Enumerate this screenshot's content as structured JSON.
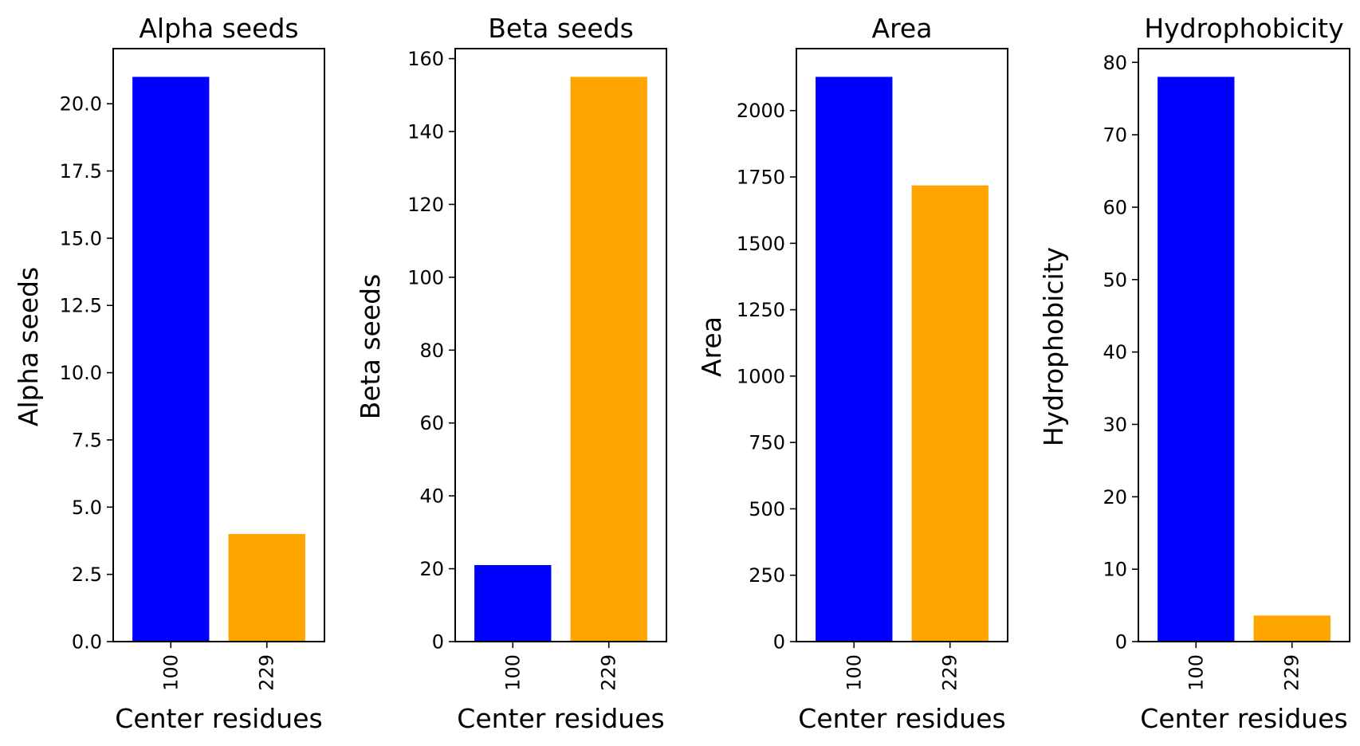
{
  "chart_data": [
    {
      "type": "bar",
      "title": "Alpha seeds",
      "xlabel": "Center residues",
      "ylabel": "Alpha seeds",
      "categories": [
        "100",
        "229"
      ],
      "values": [
        21,
        4
      ],
      "colors": [
        "#0000ff",
        "#ffa500"
      ],
      "ylim": [
        0,
        22.05
      ],
      "yticks": [
        0.0,
        2.5,
        5.0,
        7.5,
        10.0,
        12.5,
        15.0,
        17.5,
        20.0
      ],
      "ytick_labels": [
        "0.0",
        "2.5",
        "5.0",
        "7.5",
        "10.0",
        "12.5",
        "15.0",
        "17.5",
        "20.0"
      ],
      "grid": false,
      "xtick_rotation": "vertical"
    },
    {
      "type": "bar",
      "title": "Beta seeds",
      "xlabel": "Center residues",
      "ylabel": "Beta seeds",
      "categories": [
        "100",
        "229"
      ],
      "values": [
        21,
        155
      ],
      "colors": [
        "#0000ff",
        "#ffa500"
      ],
      "ylim": [
        0,
        162.75
      ],
      "yticks": [
        0,
        20,
        40,
        60,
        80,
        100,
        120,
        140,
        160
      ],
      "ytick_labels": [
        "0",
        "20",
        "40",
        "60",
        "80",
        "100",
        "120",
        "140",
        "160"
      ],
      "grid": false,
      "xtick_rotation": "vertical"
    },
    {
      "type": "bar",
      "title": "Area",
      "xlabel": "Center residues",
      "ylabel": "Area",
      "categories": [
        "100",
        "229"
      ],
      "values": [
        2127,
        1718
      ],
      "colors": [
        "#0000ff",
        "#ffa500"
      ],
      "ylim": [
        0,
        2233.35
      ],
      "yticks": [
        0,
        250,
        500,
        750,
        1000,
        1250,
        1500,
        1750,
        2000
      ],
      "ytick_labels": [
        "0",
        "250",
        "500",
        "750",
        "1000",
        "1250",
        "1500",
        "1750",
        "2000"
      ],
      "grid": false,
      "xtick_rotation": "vertical"
    },
    {
      "type": "bar",
      "title": "Hydrophobicity",
      "xlabel": "Center residues",
      "ylabel": "Hydrophobicity",
      "categories": [
        "100",
        "229"
      ],
      "values": [
        78,
        3.6
      ],
      "colors": [
        "#0000ff",
        "#ffa500"
      ],
      "ylim": [
        0,
        81.9
      ],
      "yticks": [
        0,
        10,
        20,
        30,
        40,
        50,
        60,
        70,
        80
      ],
      "ytick_labels": [
        "0",
        "10",
        "20",
        "30",
        "40",
        "50",
        "60",
        "70",
        "80"
      ],
      "grid": false,
      "xtick_rotation": "vertical"
    }
  ]
}
